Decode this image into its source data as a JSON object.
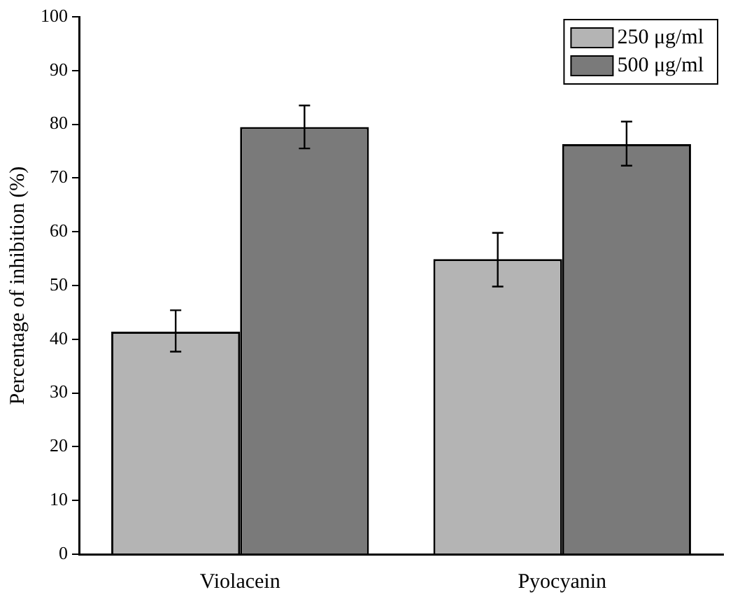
{
  "chart_data": {
    "type": "bar",
    "ylabel": "Percentage of inhibition (%)",
    "categories": [
      "Violacein",
      "Pyocyanin"
    ],
    "series": [
      {
        "name": "250 μg/ml",
        "color": "#b4b4b4",
        "values": [
          41.4,
          54.9
        ],
        "errors": [
          [
            37.7,
            45.4
          ],
          [
            49.8,
            59.8
          ]
        ]
      },
      {
        "name": "500 μg/ml",
        "color": "#7a7a7a",
        "values": [
          79.5,
          76.3
        ],
        "errors": [
          [
            75.5,
            83.5
          ],
          [
            72.3,
            80.5
          ]
        ]
      }
    ],
    "ylim": [
      0,
      100
    ],
    "yticks": [
      0,
      10,
      20,
      30,
      40,
      50,
      60,
      70,
      80,
      90,
      100
    ],
    "grid": false,
    "legend": "top right"
  }
}
